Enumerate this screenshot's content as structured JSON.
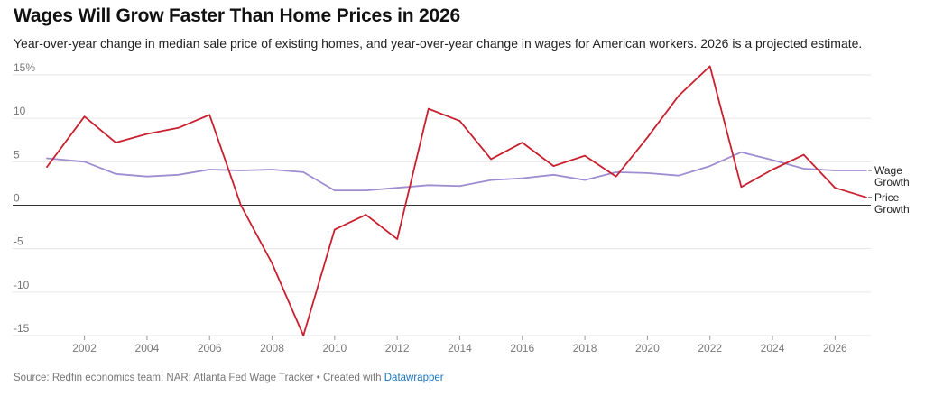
{
  "title": "Wages Will Grow Faster Than Home Prices in 2026",
  "subtitle": "Year-over-year change in median sale price of existing homes, and year-over-year change in wages for American workers. 2026 is a projected estimate.",
  "footer": {
    "source": "Source: Redfin economics team; NAR; Atlanta Fed Wage Tracker • Created with ",
    "link": "Datawrapper"
  },
  "chart_data": {
    "type": "line",
    "title": "Wages Will Grow Faster Than Home Prices in 2026",
    "xlabel": "",
    "ylabel": "",
    "xlim": [
      2000.8,
      2027
    ],
    "ylim": [
      -15,
      15
    ],
    "grid": true,
    "y_ticks": [
      15,
      10,
      5,
      0,
      -5,
      -10,
      -15
    ],
    "y_tick_labels": [
      "15%",
      "10",
      "5",
      "0",
      "-5",
      "-10",
      "-15"
    ],
    "x_ticks": [
      2002,
      2004,
      2006,
      2008,
      2010,
      2012,
      2014,
      2016,
      2018,
      2020,
      2022,
      2024,
      2026
    ],
    "x_tick_labels": [
      "2002",
      "2004",
      "2006",
      "2008",
      "2010",
      "2012",
      "2014",
      "2016",
      "2018",
      "2020",
      "2022",
      "2024",
      "2026"
    ],
    "series": [
      {
        "name": "Wage Growth",
        "label_lines": [
          "Wage",
          "Growth"
        ],
        "color": "#a08cd0",
        "x": [
          2000.8,
          2002,
          2003,
          2004,
          2005,
          2006,
          2007,
          2008,
          2009,
          2010,
          2011,
          2012,
          2013,
          2014,
          2015,
          2016,
          2017,
          2018,
          2019,
          2020,
          2021,
          2022,
          2023,
          2024,
          2025,
          2026,
          2027
        ],
        "values": [
          5.4,
          5.0,
          3.6,
          3.3,
          3.5,
          4.1,
          4.0,
          4.1,
          3.8,
          1.7,
          1.7,
          2.0,
          2.3,
          2.2,
          2.9,
          3.1,
          3.5,
          2.9,
          3.8,
          3.7,
          3.4,
          4.5,
          6.1,
          5.2,
          4.2,
          4.0,
          4.0
        ]
      },
      {
        "name": "Price Growth",
        "label_lines": [
          "Price",
          "Growth"
        ],
        "color": "#c8202e",
        "x": [
          2000.8,
          2002,
          2003,
          2004,
          2005,
          2006,
          2007,
          2008,
          2009,
          2010,
          2011,
          2012,
          2013,
          2014,
          2015,
          2016,
          2017,
          2018,
          2019,
          2020,
          2021,
          2022,
          2023,
          2024,
          2025,
          2026,
          2027
        ],
        "values": [
          4.4,
          10.2,
          7.2,
          8.2,
          8.9,
          10.4,
          0.0,
          -6.7,
          -15.0,
          -2.8,
          -1.1,
          -3.9,
          11.1,
          9.7,
          5.3,
          7.2,
          4.5,
          5.7,
          3.3,
          7.8,
          12.6,
          16.0,
          2.1,
          4.1,
          5.8,
          2.0,
          0.9
        ]
      }
    ]
  }
}
